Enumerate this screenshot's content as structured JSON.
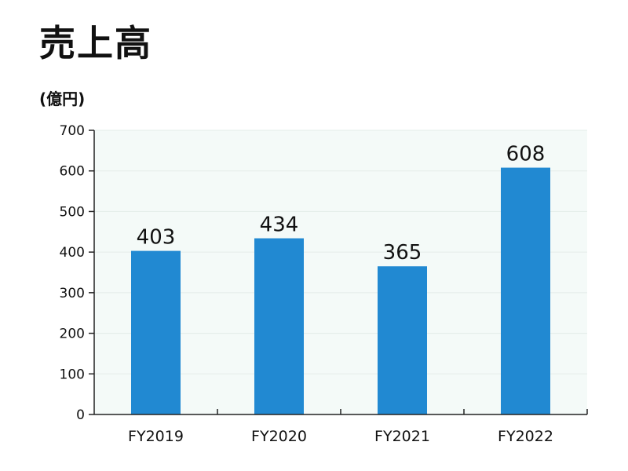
{
  "chart_data": {
    "type": "bar",
    "title": "売上高",
    "unit_label": "(億円)",
    "categories": [
      "FY2019",
      "FY2020",
      "FY2021",
      "FY2022"
    ],
    "values": [
      403,
      434,
      365,
      608
    ],
    "data_labels": [
      "403",
      "434",
      "365",
      "608"
    ],
    "ylim": [
      0,
      700
    ],
    "yticks": [
      0,
      100,
      200,
      300,
      400,
      500,
      600,
      700
    ],
    "ytick_labels": [
      "0",
      "100",
      "200",
      "300",
      "400",
      "500",
      "600",
      "700"
    ],
    "grid": true,
    "legend": "none",
    "colors": {
      "bar": "#2189d2",
      "plot_bg": "#f4faf8",
      "grid": "#e3ece9",
      "axis": "#222222"
    }
  }
}
